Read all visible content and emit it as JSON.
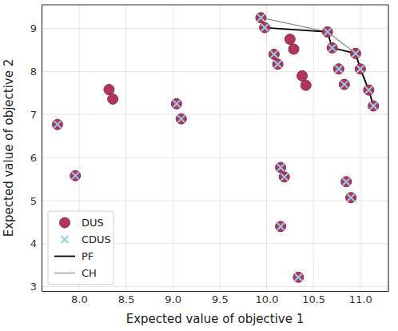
{
  "chart_data": {
    "type": "scatter",
    "x_label": "Expected value of objective 1",
    "y_label": "Expected value of objective 2",
    "xlim": [
      7.6,
      11.3
    ],
    "ylim": [
      2.9,
      9.55
    ],
    "xticks": [
      {
        "value": 8,
        "label": "8.0"
      },
      {
        "value": 8.5,
        "label": "8.5"
      },
      {
        "value": 9,
        "label": "9.0"
      },
      {
        "value": 9.5,
        "label": "9.5"
      },
      {
        "value": 10,
        "label": "10.0"
      },
      {
        "value": 10.5,
        "label": "10.5"
      },
      {
        "value": 11,
        "label": "11.0"
      }
    ],
    "yticks": [
      3,
      4,
      5,
      6,
      7,
      8,
      9
    ],
    "grid": true,
    "legend": "lower left",
    "series": [
      {
        "name": "DUS",
        "type": "scatter",
        "marker": "circle",
        "color": "#b0365a",
        "x": [
          7.77,
          7.96,
          8.32,
          8.36,
          9.04,
          9.09,
          9.94,
          9.98,
          10.08,
          10.12,
          10.25,
          10.29,
          10.38,
          10.42,
          10.15,
          10.19,
          10.15,
          10.34,
          10.65,
          10.7,
          10.77,
          10.83,
          10.95,
          11.0,
          11.09,
          11.14,
          10.85,
          10.9
        ],
        "values": [
          6.77,
          5.58,
          7.58,
          7.36,
          7.25,
          6.9,
          9.25,
          9.02,
          8.4,
          8.17,
          8.75,
          8.52,
          7.9,
          7.68,
          5.77,
          5.55,
          4.4,
          3.22,
          8.92,
          8.55,
          8.06,
          7.7,
          8.42,
          8.06,
          7.57,
          7.2,
          5.44,
          5.07
        ]
      },
      {
        "name": "CDUS",
        "type": "scatter",
        "marker": "x",
        "color": "#8ecfee",
        "x": [
          7.77,
          7.96,
          9.04,
          9.09,
          9.94,
          9.98,
          10.08,
          10.12,
          10.15,
          10.19,
          10.15,
          10.34,
          10.65,
          10.7,
          10.77,
          10.83,
          10.95,
          11.0,
          11.09,
          11.14,
          10.85,
          10.9
        ],
        "values": [
          6.77,
          5.58,
          7.25,
          6.9,
          9.25,
          9.02,
          8.4,
          8.17,
          5.77,
          5.55,
          4.4,
          3.22,
          8.92,
          8.55,
          8.06,
          7.7,
          8.42,
          8.06,
          7.57,
          7.2,
          5.44,
          5.07
        ]
      },
      {
        "name": "PF",
        "type": "line",
        "line_style": "solid",
        "color": "#000000",
        "x": [
          9.94,
          9.98,
          10.65,
          10.7,
          10.95,
          11.0,
          11.09,
          11.14
        ],
        "values": [
          9.25,
          9.02,
          8.92,
          8.55,
          8.42,
          8.06,
          7.57,
          7.2
        ]
      },
      {
        "name": "CH",
        "type": "line",
        "line_style": "solid",
        "color": "#8c8c8c",
        "x": [
          9.94,
          10.65,
          10.95,
          11.09,
          11.14
        ],
        "values": [
          9.25,
          8.92,
          8.42,
          7.57,
          7.2
        ]
      }
    ]
  }
}
